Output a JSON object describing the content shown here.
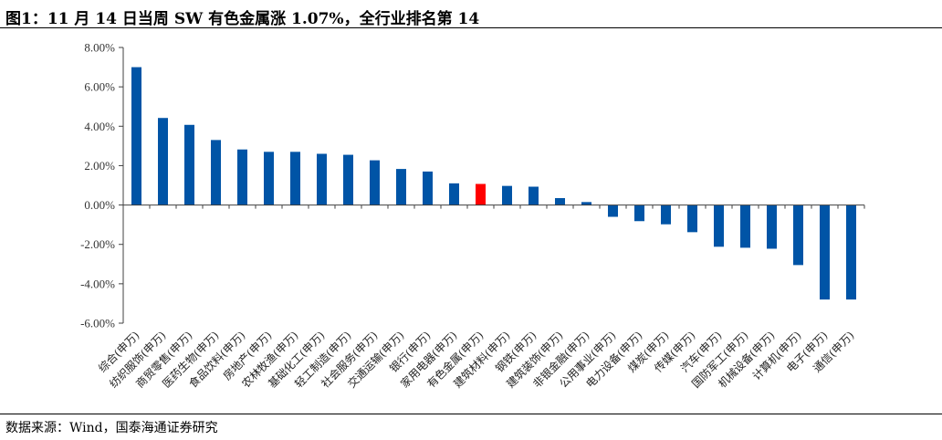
{
  "title": "图1：11 月 14 日当周 SW 有色金属涨 1.07%，全行业排名第 14",
  "source": "数据来源：Wind，国泰海通证券研究",
  "colors": {
    "bar": "#0054A6",
    "highlight": "#FF0000",
    "axis": "#404040"
  },
  "chart_data": {
    "type": "bar",
    "title": "图1：11 月 14 日当周 SW 有色金属涨 1.07%，全行业排名第 14",
    "xlabel": "",
    "ylabel": "",
    "ylim": [
      -6,
      8
    ],
    "yticks": [
      8,
      6,
      4,
      2,
      0,
      -2,
      -4,
      -6
    ],
    "ytick_labels": [
      "8.00%",
      "6.00%",
      "4.00%",
      "2.00%",
      "0.00%",
      "-2.00%",
      "-4.00%",
      "-6.00%"
    ],
    "grid": false,
    "legend": "none",
    "highlight_index": 14,
    "categories": [
      "综合(申万)",
      "纺织服饰(申万)",
      "商贸零售(申万)",
      "医药生物(申万)",
      "食品饮料(申万)",
      "房地产(申万)",
      "农林牧渔(申万)",
      "基础化工(申万)",
      "轻工制造(申万)",
      "社会服务(申万)",
      "交通运输(申万)",
      "银行(申万)",
      "家用电器(申万)",
      "有色金属(申万)",
      "建筑材料(申万)",
      "钢铁(申万)",
      "建筑装饰(申万)",
      "非银金融(申万)",
      "公用事业(申万)",
      "电力设备(申万)",
      "煤炭(申万)",
      "传媒(申万)",
      "汽车(申万)",
      "国防军工(申万)",
      "机械设备(申万)",
      "计算机(申万)",
      "电子(申万)",
      "通信(申万)"
    ],
    "values": [
      7.0,
      4.42,
      4.07,
      3.3,
      2.82,
      2.7,
      2.7,
      2.6,
      2.55,
      2.27,
      1.83,
      1.7,
      1.1,
      1.07,
      0.97,
      0.93,
      0.35,
      0.15,
      -0.6,
      -0.82,
      -0.98,
      -1.38,
      -2.12,
      -2.17,
      -2.22,
      -3.05,
      -4.8,
      -4.8
    ]
  }
}
